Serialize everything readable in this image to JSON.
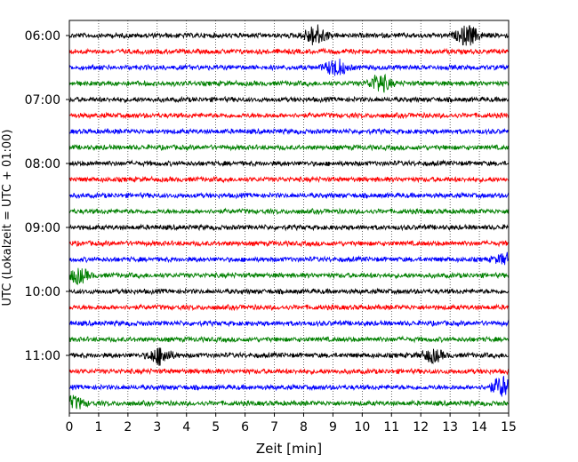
{
  "chart_data": {
    "type": "line",
    "xlabel": "Zeit  [min]",
    "ylabel": "UTC (Lokalzeit = UTC + 01:00)",
    "xlim": [
      0,
      15
    ],
    "x_ticks": [
      "0",
      "1",
      "2",
      "3",
      "4",
      "5",
      "6",
      "7",
      "8",
      "9",
      "10",
      "11",
      "12",
      "13",
      "14",
      "15"
    ],
    "y_tick_labels": [
      "06:00",
      "07:00",
      "08:00",
      "09:00",
      "10:00",
      "11:00"
    ],
    "trace_interval_min": 15,
    "grid": "vertical dotted",
    "colors": [
      "#000000",
      "#ff0000",
      "#0000ff",
      "#008000"
    ],
    "traces": [
      {
        "start": "06:00",
        "color": "#000000",
        "events": [
          {
            "t": 8.4,
            "amp": 1.0
          },
          {
            "t": 13.6,
            "amp": 0.95
          }
        ]
      },
      {
        "start": "06:15",
        "color": "#ff0000",
        "events": []
      },
      {
        "start": "06:30",
        "color": "#0000ff",
        "events": [
          {
            "t": 9.1,
            "amp": 0.8
          }
        ]
      },
      {
        "start": "06:45",
        "color": "#008000",
        "events": [
          {
            "t": 10.6,
            "amp": 0.85
          }
        ]
      },
      {
        "start": "07:00",
        "color": "#000000",
        "events": []
      },
      {
        "start": "07:15",
        "color": "#ff0000",
        "events": []
      },
      {
        "start": "07:30",
        "color": "#0000ff",
        "events": []
      },
      {
        "start": "07:45",
        "color": "#008000",
        "events": []
      },
      {
        "start": "08:00",
        "color": "#000000",
        "events": []
      },
      {
        "start": "08:15",
        "color": "#ff0000",
        "events": []
      },
      {
        "start": "08:30",
        "color": "#0000ff",
        "events": []
      },
      {
        "start": "08:45",
        "color": "#008000",
        "events": []
      },
      {
        "start": "09:00",
        "color": "#000000",
        "events": []
      },
      {
        "start": "09:15",
        "color": "#ff0000",
        "events": []
      },
      {
        "start": "09:30",
        "color": "#0000ff",
        "events": [
          {
            "t": 14.9,
            "amp": 0.5
          }
        ]
      },
      {
        "start": "09:45",
        "color": "#008000",
        "events": [
          {
            "t": 0.3,
            "amp": 0.7
          }
        ]
      },
      {
        "start": "10:00",
        "color": "#000000",
        "events": []
      },
      {
        "start": "10:15",
        "color": "#ff0000",
        "events": []
      },
      {
        "start": "10:30",
        "color": "#0000ff",
        "events": []
      },
      {
        "start": "10:45",
        "color": "#008000",
        "events": []
      },
      {
        "start": "11:00",
        "color": "#000000",
        "events": [
          {
            "t": 3.1,
            "amp": 0.85
          },
          {
            "t": 12.4,
            "amp": 0.6
          }
        ]
      },
      {
        "start": "11:15",
        "color": "#ff0000",
        "events": []
      },
      {
        "start": "11:30",
        "color": "#0000ff",
        "events": [
          {
            "t": 14.8,
            "amp": 1.0
          }
        ]
      },
      {
        "start": "11:45",
        "color": "#008000",
        "events": [
          {
            "t": 0.15,
            "amp": 0.6
          }
        ]
      }
    ]
  }
}
